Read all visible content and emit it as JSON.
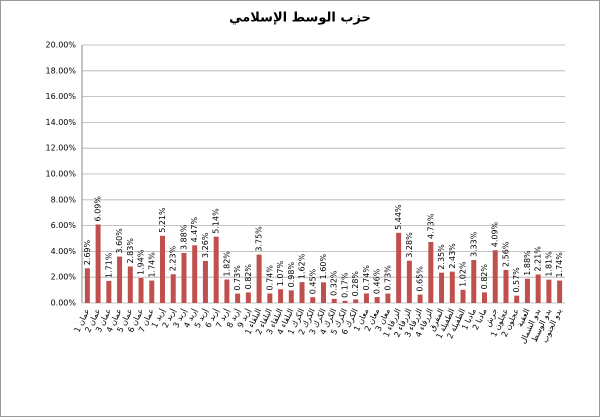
{
  "chart_data": {
    "type": "bar",
    "title": "حزب الوسط الإسلامي",
    "categories": [
      "عمان 1",
      "عمان 2",
      "عمان 3",
      "عمان 4",
      "عمان 5",
      "عمان 6",
      "عمان 7",
      "إربد 1",
      "إربد 2",
      "إربد 3",
      "إربد 4",
      "إربد 5",
      "إربد 6",
      "إربد 7",
      "إربد 8",
      "إربد 9",
      "البلقاء 1",
      "البلقاء 2",
      "البلقاء 3",
      "البلقاء 4",
      "الكرك 1",
      "الكرك 2",
      "الكرك 3",
      "الكرك 4",
      "الكرك 5",
      "الكرك 6",
      "معان 1",
      "معان 2",
      "معان 3",
      "الزرقاء 1",
      "الزرقاء 2",
      "الزرقاء 3",
      "الزرقاء 4",
      "المفرق",
      "الطفيلة 1",
      "الطفيلة 2",
      "مادبا 1",
      "مادبا 2",
      "جرش",
      "عجلون 1",
      "عجلون 2",
      "العقبة",
      "بدو الشمال",
      "بدو الوسط",
      "بدو الجنوب"
    ],
    "values": [
      2.69,
      6.09,
      1.71,
      3.6,
      2.83,
      1.94,
      1.74,
      5.21,
      2.23,
      3.88,
      4.47,
      3.26,
      5.14,
      1.82,
      0.73,
      0.82,
      3.75,
      0.74,
      1.07,
      0.98,
      1.62,
      0.45,
      1.6,
      0.32,
      0.17,
      0.28,
      0.74,
      0.46,
      0.73,
      5.44,
      3.28,
      0.65,
      4.73,
      2.35,
      2.43,
      1.02,
      3.33,
      0.82,
      4.09,
      2.56,
      0.57,
      1.88,
      2.21,
      1.81,
      1.74
    ],
    "value_labels": [
      "2.69%",
      "6.09%",
      "1.71%",
      "3.60%",
      "2.83%",
      "1.94%",
      "1.74%",
      "5.21%",
      "2.23%",
      "3.88%",
      "4.47%",
      "3.26%",
      "5.14%",
      "1.82%",
      "0.73%",
      "0.82%",
      "3.75%",
      "0.74%",
      "1.07%",
      "0.98%",
      "1.62%",
      "0.45%",
      "1.60%",
      "0.32%",
      "0.17%",
      "0.28%",
      "0.74%",
      "0.46%",
      "0.73%",
      "5.44%",
      "3.28%",
      "0.65%",
      "4.73%",
      "2.35%",
      "2.43%",
      "1.02%",
      "3.33%",
      "0.82%",
      "4.09%",
      "2.56%",
      "0.57%",
      "1.88%",
      "2.21%",
      "1.81%",
      "1.74%"
    ],
    "color": "#c0504d",
    "ylim": [
      0,
      20
    ],
    "yticks": [
      {
        "value": 0,
        "label": "0.00%"
      },
      {
        "value": 2,
        "label": "2.00%"
      },
      {
        "value": 4,
        "label": "4.00%"
      },
      {
        "value": 6,
        "label": "6.00%"
      },
      {
        "value": 8,
        "label": "8.00%"
      },
      {
        "value": 10,
        "label": "10.00%"
      },
      {
        "value": 12,
        "label": "12.00%"
      },
      {
        "value": 14,
        "label": "14.00%"
      },
      {
        "value": 16,
        "label": "16.00%"
      },
      {
        "value": 18,
        "label": "18.00%"
      },
      {
        "value": 20,
        "label": "20.00%"
      }
    ],
    "grid": true
  }
}
